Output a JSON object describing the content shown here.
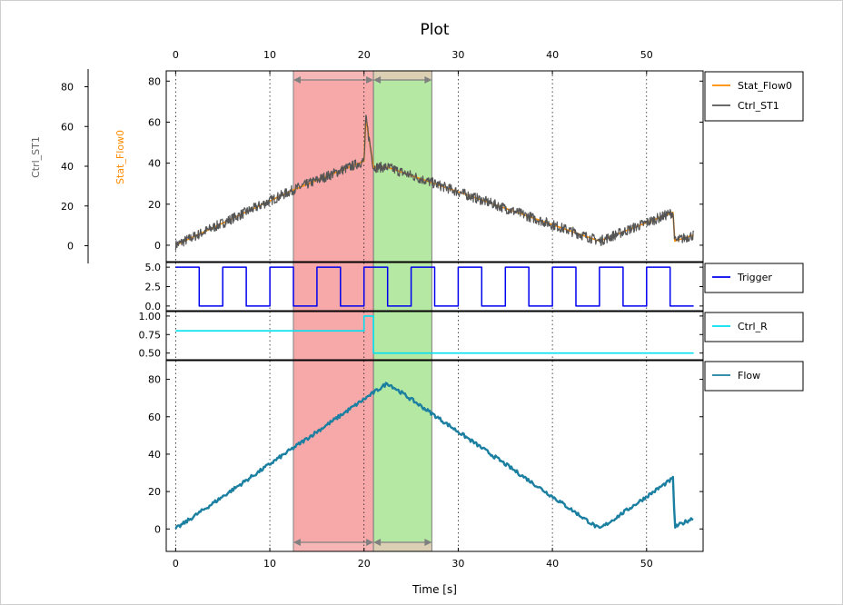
{
  "chart_data": {
    "title": "Plot",
    "xlabel": "Time [s]",
    "xlim": [
      -1,
      56
    ],
    "xticks": [
      0,
      10,
      20,
      30,
      40,
      50
    ],
    "grid": "vertical dotted",
    "highlight_regions": [
      {
        "x": [
          12.5,
          21
        ],
        "color": "#f06060"
      },
      {
        "x": [
          21,
          27.2
        ],
        "color": "#78d658"
      }
    ],
    "panels": [
      {
        "name": "top",
        "type": "line",
        "ylim": [
          -8,
          85
        ],
        "yticks": [
          0,
          20,
          40,
          60,
          80
        ],
        "left_axis_labels": [
          {
            "text": "Stat_Flow0",
            "color": "#ff8c00"
          },
          {
            "text": "Ctrl_ST1",
            "color": "#666666"
          }
        ],
        "outer_axis": {
          "ylim": [
            -8,
            88
          ],
          "yticks": [
            0,
            20,
            40,
            60,
            80
          ]
        },
        "legend": "outside-right",
        "series": [
          {
            "name": "Stat_Flow0",
            "color": "#ff8c00",
            "x": [
              0,
              12.5,
              20,
              20.2,
              21,
              22.5,
              45,
              52.8,
              53,
              55
            ],
            "y": [
              0,
              27,
              41,
              62,
              38,
              38,
              2,
              16,
              2,
              5
            ]
          },
          {
            "name": "Ctrl_ST1",
            "color": "#555555",
            "x": [
              0,
              12.5,
              20,
              20.2,
              21,
              22.5,
              45,
              52.8,
              53,
              55
            ],
            "y": [
              0,
              27,
              41,
              62,
              38,
              38,
              2,
              16,
              2,
              5
            ],
            "noise": 2.5
          }
        ]
      },
      {
        "name": "trigger",
        "type": "line",
        "ylim": [
          -0.6,
          5.6
        ],
        "yticks": [
          0,
          2.5,
          5
        ],
        "ytick_labels": [
          "0.0",
          "2.5",
          "5.0"
        ],
        "legend": "outside-right",
        "series": [
          {
            "name": "Trigger",
            "color": "#0000ee",
            "period": 5,
            "high": 5,
            "low": 0,
            "high_first": true,
            "x_end": 55
          }
        ]
      },
      {
        "name": "ctrl_r",
        "type": "line",
        "ylim": [
          0.41,
          1.06
        ],
        "yticks": [
          0.5,
          0.75,
          1.0
        ],
        "ytick_labels": [
          "0.50",
          "0.75",
          "1.00"
        ],
        "legend": "outside-right",
        "series": [
          {
            "name": "Ctrl_R",
            "color": "#00e0f0",
            "x": [
              0,
              20,
              20,
              21,
              21,
              55
            ],
            "y": [
              0.8,
              0.8,
              1.0,
              1.0,
              0.5,
              0.5
            ]
          }
        ]
      },
      {
        "name": "flow",
        "type": "line",
        "ylim": [
          -12,
          90
        ],
        "yticks": [
          0,
          20,
          40,
          60,
          80
        ],
        "legend": "outside-right",
        "series": [
          {
            "name": "Flow",
            "color": "#1a7fa0",
            "x": [
              0,
              22.5,
              45,
              52.8,
              53,
              55
            ],
            "y": [
              0,
              78,
              0,
              27,
              1,
              6
            ],
            "noise": 1
          }
        ]
      }
    ]
  }
}
